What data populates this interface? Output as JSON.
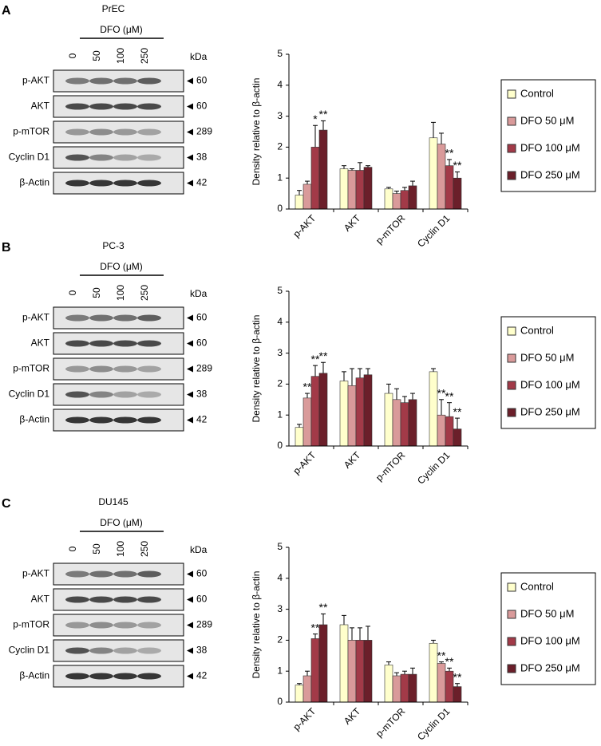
{
  "panels": [
    {
      "letter": "A",
      "cell_line": "PrEC",
      "treatment": "DFO (μM)",
      "lanes": [
        "0",
        "50",
        "100",
        "250"
      ],
      "kda_label": "kDa",
      "rows": [
        {
          "protein": "p-AKT",
          "kda": "60"
        },
        {
          "protein": "AKT",
          "kda": "60"
        },
        {
          "protein": "p-mTOR",
          "kda": "289"
        },
        {
          "protein": "Cyclin D1",
          "kda": "38"
        },
        {
          "protein": "β-Actin",
          "kda": "42"
        }
      ]
    },
    {
      "letter": "B",
      "cell_line": "PC-3",
      "treatment": "DFO (μM)",
      "lanes": [
        "0",
        "50",
        "100",
        "250"
      ],
      "kda_label": "kDa",
      "rows": [
        {
          "protein": "p-AKT",
          "kda": "60"
        },
        {
          "protein": "AKT",
          "kda": "60"
        },
        {
          "protein": "p-mTOR",
          "kda": "289"
        },
        {
          "protein": "Cyclin D1",
          "kda": "38"
        },
        {
          "protein": "β-Actin",
          "kda": "42"
        }
      ]
    },
    {
      "letter": "C",
      "cell_line": "DU145",
      "treatment": "DFO (μM)",
      "lanes": [
        "0",
        "50",
        "100",
        "250"
      ],
      "kda_label": "kDa",
      "rows": [
        {
          "protein": "p-AKT",
          "kda": "60"
        },
        {
          "protein": "AKT",
          "kda": "60"
        },
        {
          "protein": "p-mTOR",
          "kda": "289"
        },
        {
          "protein": "Cyclin D1",
          "kda": "38"
        },
        {
          "protein": "β-Actin",
          "kda": "42"
        }
      ]
    }
  ],
  "chart_data": [
    {
      "type": "bar",
      "ylabel": "Density relative to β-actin",
      "categories": [
        "p-AKT",
        "AKT",
        "p-mTOR",
        "Cyclin D1"
      ],
      "ylim": [
        0,
        5
      ],
      "yticks": [
        0,
        1,
        2,
        3,
        4,
        5
      ],
      "series": [
        {
          "name": "Control",
          "color": "#ffffcc",
          "values": [
            0.45,
            1.3,
            0.65,
            2.3
          ],
          "errors": [
            0.15,
            0.1,
            0.05,
            0.5
          ],
          "significance": [
            null,
            null,
            null,
            null
          ]
        },
        {
          "name": "DFO 50 μM",
          "color": "#d99a9a",
          "values": [
            0.8,
            1.25,
            0.5,
            2.1
          ],
          "errors": [
            0.1,
            0.05,
            0.08,
            0.35
          ],
          "significance": [
            null,
            null,
            null,
            null
          ]
        },
        {
          "name": "DFO 100 μM",
          "color": "#a23a48",
          "values": [
            2.0,
            1.25,
            0.6,
            1.4
          ],
          "errors": [
            0.7,
            0.25,
            0.1,
            0.2
          ],
          "significance": [
            "*",
            null,
            null,
            "**"
          ]
        },
        {
          "name": "DFO 250 μM",
          "color": "#6b1f2a",
          "values": [
            2.55,
            1.35,
            0.75,
            1.0
          ],
          "errors": [
            0.3,
            0.05,
            0.15,
            0.2
          ],
          "significance": [
            "**",
            null,
            null,
            "**"
          ]
        }
      ]
    },
    {
      "type": "bar",
      "ylabel": "Density relative to β-actin",
      "categories": [
        "p-AKT",
        "AKT",
        "p-mTOR",
        "Cyclin D1"
      ],
      "ylim": [
        0,
        5
      ],
      "yticks": [
        0,
        1,
        2,
        3,
        4,
        5
      ],
      "series": [
        {
          "name": "Control",
          "color": "#ffffcc",
          "values": [
            0.6,
            2.1,
            1.7,
            2.4
          ],
          "errors": [
            0.1,
            0.3,
            0.3,
            0.1
          ],
          "significance": [
            null,
            null,
            null,
            null
          ]
        },
        {
          "name": "DFO 50 μM",
          "color": "#d99a9a",
          "values": [
            1.55,
            1.95,
            1.5,
            1.0
          ],
          "errors": [
            0.15,
            0.55,
            0.35,
            0.5
          ],
          "significance": [
            "**",
            null,
            null,
            "**"
          ]
        },
        {
          "name": "DFO 100 μM",
          "color": "#a23a48",
          "values": [
            2.25,
            2.2,
            1.4,
            0.95
          ],
          "errors": [
            0.35,
            0.3,
            0.2,
            0.45
          ],
          "significance": [
            "**",
            null,
            null,
            "**"
          ]
        },
        {
          "name": "DFO 250 μM",
          "color": "#6b1f2a",
          "values": [
            2.35,
            2.3,
            1.5,
            0.55
          ],
          "errors": [
            0.35,
            0.2,
            0.2,
            0.35
          ],
          "significance": [
            "**",
            null,
            null,
            "**"
          ]
        }
      ]
    },
    {
      "type": "bar",
      "ylabel": "Density relative to β-actin",
      "categories": [
        "p-AKT",
        "AKT",
        "p-mTOR",
        "Cyclin D1"
      ],
      "ylim": [
        0,
        5
      ],
      "yticks": [
        0,
        1,
        2,
        3,
        4,
        5
      ],
      "series": [
        {
          "name": "Control",
          "color": "#ffffcc",
          "values": [
            0.55,
            2.5,
            1.2,
            1.9
          ],
          "errors": [
            0.05,
            0.3,
            0.1,
            0.1
          ],
          "significance": [
            null,
            null,
            null,
            null
          ]
        },
        {
          "name": "DFO 50 μM",
          "color": "#d99a9a",
          "values": [
            0.85,
            2.0,
            0.85,
            1.25
          ],
          "errors": [
            0.15,
            0.4,
            0.1,
            0.05
          ],
          "significance": [
            null,
            null,
            null,
            "**"
          ]
        },
        {
          "name": "DFO 100 μM",
          "color": "#a23a48",
          "values": [
            2.05,
            2.0,
            0.9,
            1.0
          ],
          "errors": [
            0.15,
            0.4,
            0.1,
            0.1
          ],
          "significance": [
            "**",
            null,
            null,
            "**"
          ]
        },
        {
          "name": "DFO 250 μM",
          "color": "#6b1f2a",
          "values": [
            2.5,
            2.0,
            0.9,
            0.5
          ],
          "errors": [
            0.35,
            0.45,
            0.2,
            0.1
          ],
          "significance": [
            "**",
            null,
            null,
            "**"
          ]
        }
      ]
    }
  ]
}
